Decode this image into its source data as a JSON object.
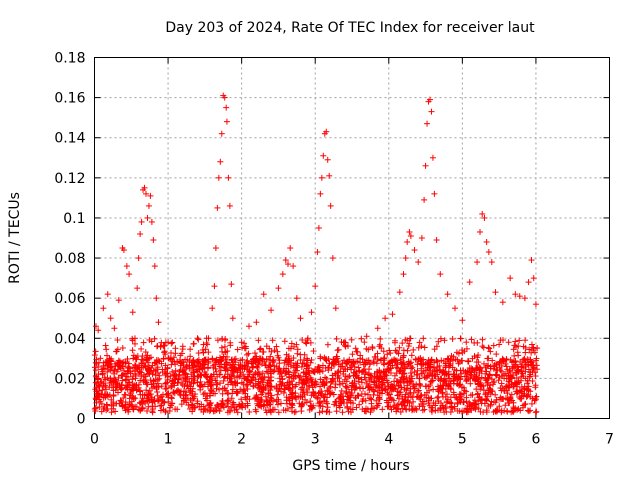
{
  "chart_data": {
    "type": "scatter",
    "title": "Day 203 of 2024, Rate Of TEC Index for receiver laut",
    "xlabel": "GPS time / hours",
    "ylabel": "ROTI / TECUs",
    "xlim": [
      0,
      7
    ],
    "ylim": [
      0,
      0.18
    ],
    "xticks": [
      "0",
      "1",
      "2",
      "3",
      "4",
      "5",
      "6",
      "7"
    ],
    "yticks": [
      "0",
      "0.02",
      "0.04",
      "0.06",
      "0.08",
      "0.1",
      "0.12",
      "0.14",
      "0.16",
      "0.18"
    ],
    "grid": true,
    "marker": "+",
    "color": "#ff0000",
    "series": [
      {
        "name": "ROTI",
        "points": [
          [
            0.02,
            0.046
          ],
          [
            0.05,
            0.044
          ],
          [
            0.08,
            0.03
          ],
          [
            0.12,
            0.055
          ],
          [
            0.18,
            0.062
          ],
          [
            0.22,
            0.05
          ],
          [
            0.27,
            0.045
          ],
          [
            0.33,
            0.059
          ],
          [
            0.38,
            0.085
          ],
          [
            0.4,
            0.084
          ],
          [
            0.44,
            0.076
          ],
          [
            0.47,
            0.072
          ],
          [
            0.52,
            0.053
          ],
          [
            0.55,
            0.04
          ],
          [
            0.58,
            0.065
          ],
          [
            0.6,
            0.08
          ],
          [
            0.62,
            0.092
          ],
          [
            0.64,
            0.098
          ],
          [
            0.66,
            0.114
          ],
          [
            0.68,
            0.115
          ],
          [
            0.7,
            0.112
          ],
          [
            0.72,
            0.1
          ],
          [
            0.74,
            0.106
          ],
          [
            0.76,
            0.111
          ],
          [
            0.78,
            0.098
          ],
          [
            0.8,
            0.089
          ],
          [
            0.82,
            0.076
          ],
          [
            0.84,
            0.06
          ],
          [
            0.87,
            0.048
          ],
          [
            0.9,
            0.036
          ],
          [
            1.0,
            0.038
          ],
          [
            1.1,
            0.035
          ],
          [
            1.2,
            0.036
          ],
          [
            1.3,
            0.031
          ],
          [
            1.4,
            0.04
          ],
          [
            1.48,
            0.033
          ],
          [
            1.55,
            0.04
          ],
          [
            1.6,
            0.055
          ],
          [
            1.63,
            0.066
          ],
          [
            1.65,
            0.085
          ],
          [
            1.67,
            0.105
          ],
          [
            1.69,
            0.12
          ],
          [
            1.71,
            0.128
          ],
          [
            1.73,
            0.142
          ],
          [
            1.75,
            0.161
          ],
          [
            1.77,
            0.16
          ],
          [
            1.79,
            0.155
          ],
          [
            1.8,
            0.148
          ],
          [
            1.82,
            0.12
          ],
          [
            1.84,
            0.106
          ],
          [
            1.86,
            0.067
          ],
          [
            1.88,
            0.05
          ],
          [
            2.0,
            0.038
          ],
          [
            2.1,
            0.046
          ],
          [
            2.2,
            0.048
          ],
          [
            2.3,
            0.062
          ],
          [
            2.4,
            0.054
          ],
          [
            2.5,
            0.065
          ],
          [
            2.56,
            0.072
          ],
          [
            2.6,
            0.079
          ],
          [
            2.63,
            0.077
          ],
          [
            2.66,
            0.085
          ],
          [
            2.7,
            0.076
          ],
          [
            2.75,
            0.06
          ],
          [
            2.8,
            0.05
          ],
          [
            2.9,
            0.04
          ],
          [
            2.95,
            0.053
          ],
          [
            3.0,
            0.066
          ],
          [
            3.03,
            0.083
          ],
          [
            3.05,
            0.095
          ],
          [
            3.07,
            0.112
          ],
          [
            3.09,
            0.12
          ],
          [
            3.11,
            0.131
          ],
          [
            3.13,
            0.142
          ],
          [
            3.15,
            0.143
          ],
          [
            3.17,
            0.129
          ],
          [
            3.19,
            0.121
          ],
          [
            3.21,
            0.106
          ],
          [
            3.24,
            0.08
          ],
          [
            3.28,
            0.055
          ],
          [
            3.4,
            0.038
          ],
          [
            3.55,
            0.035
          ],
          [
            3.7,
            0.041
          ],
          [
            3.85,
            0.045
          ],
          [
            3.95,
            0.05
          ],
          [
            4.05,
            0.052
          ],
          [
            4.15,
            0.063
          ],
          [
            4.2,
            0.072
          ],
          [
            4.23,
            0.08
          ],
          [
            4.25,
            0.088
          ],
          [
            4.28,
            0.093
          ],
          [
            4.3,
            0.091
          ],
          [
            4.35,
            0.084
          ],
          [
            4.4,
            0.078
          ],
          [
            4.45,
            0.09
          ],
          [
            4.48,
            0.109
          ],
          [
            4.5,
            0.126
          ],
          [
            4.52,
            0.147
          ],
          [
            4.54,
            0.158
          ],
          [
            4.56,
            0.159
          ],
          [
            4.58,
            0.153
          ],
          [
            4.6,
            0.13
          ],
          [
            4.62,
            0.112
          ],
          [
            4.65,
            0.089
          ],
          [
            4.7,
            0.072
          ],
          [
            4.8,
            0.062
          ],
          [
            4.9,
            0.055
          ],
          [
            5.0,
            0.049
          ],
          [
            5.1,
            0.068
          ],
          [
            5.2,
            0.078
          ],
          [
            5.24,
            0.093
          ],
          [
            5.27,
            0.102
          ],
          [
            5.3,
            0.1
          ],
          [
            5.33,
            0.088
          ],
          [
            5.36,
            0.083
          ],
          [
            5.4,
            0.078
          ],
          [
            5.45,
            0.063
          ],
          [
            5.55,
            0.058
          ],
          [
            5.65,
            0.07
          ],
          [
            5.72,
            0.062
          ],
          [
            5.78,
            0.061
          ],
          [
            5.85,
            0.06
          ],
          [
            5.9,
            0.068
          ],
          [
            5.94,
            0.079
          ],
          [
            5.97,
            0.07
          ],
          [
            6.0,
            0.057
          ]
        ]
      }
    ]
  }
}
